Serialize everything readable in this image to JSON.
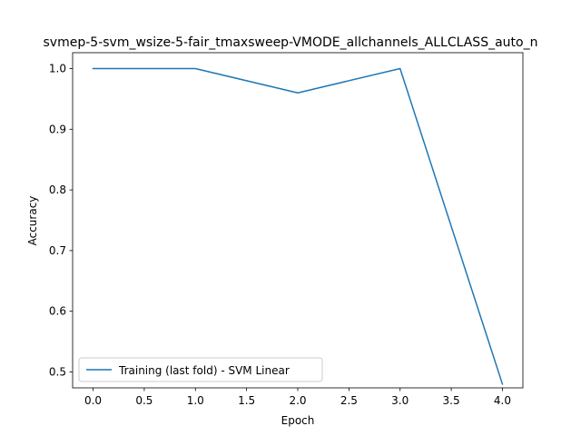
{
  "chart_data": {
    "type": "line",
    "title": "svmep-5-svm_wsize-5-fair_tmaxsweep-VMODE_allchannels_ALLCLASS_auto_n",
    "xlabel": "Epoch",
    "ylabel": "Accuracy",
    "xlim": [
      -0.2,
      4.2
    ],
    "ylim": [
      0.4738,
      1.0262
    ],
    "xticks": [
      "0.0",
      "0.5",
      "1.0",
      "1.5",
      "2.0",
      "2.5",
      "3.0",
      "3.5",
      "4.0"
    ],
    "yticks": [
      "0.5",
      "0.6",
      "0.7",
      "0.8",
      "0.9",
      "1.0"
    ],
    "grid": false,
    "legend_position": "lower-left",
    "series": [
      {
        "name": "Training (last fold) - SVM Linear",
        "color": "#1f77b4",
        "x": [
          0,
          1,
          2,
          3,
          4
        ],
        "y": [
          1.0,
          1.0,
          0.96,
          1.0,
          0.48
        ]
      }
    ]
  }
}
